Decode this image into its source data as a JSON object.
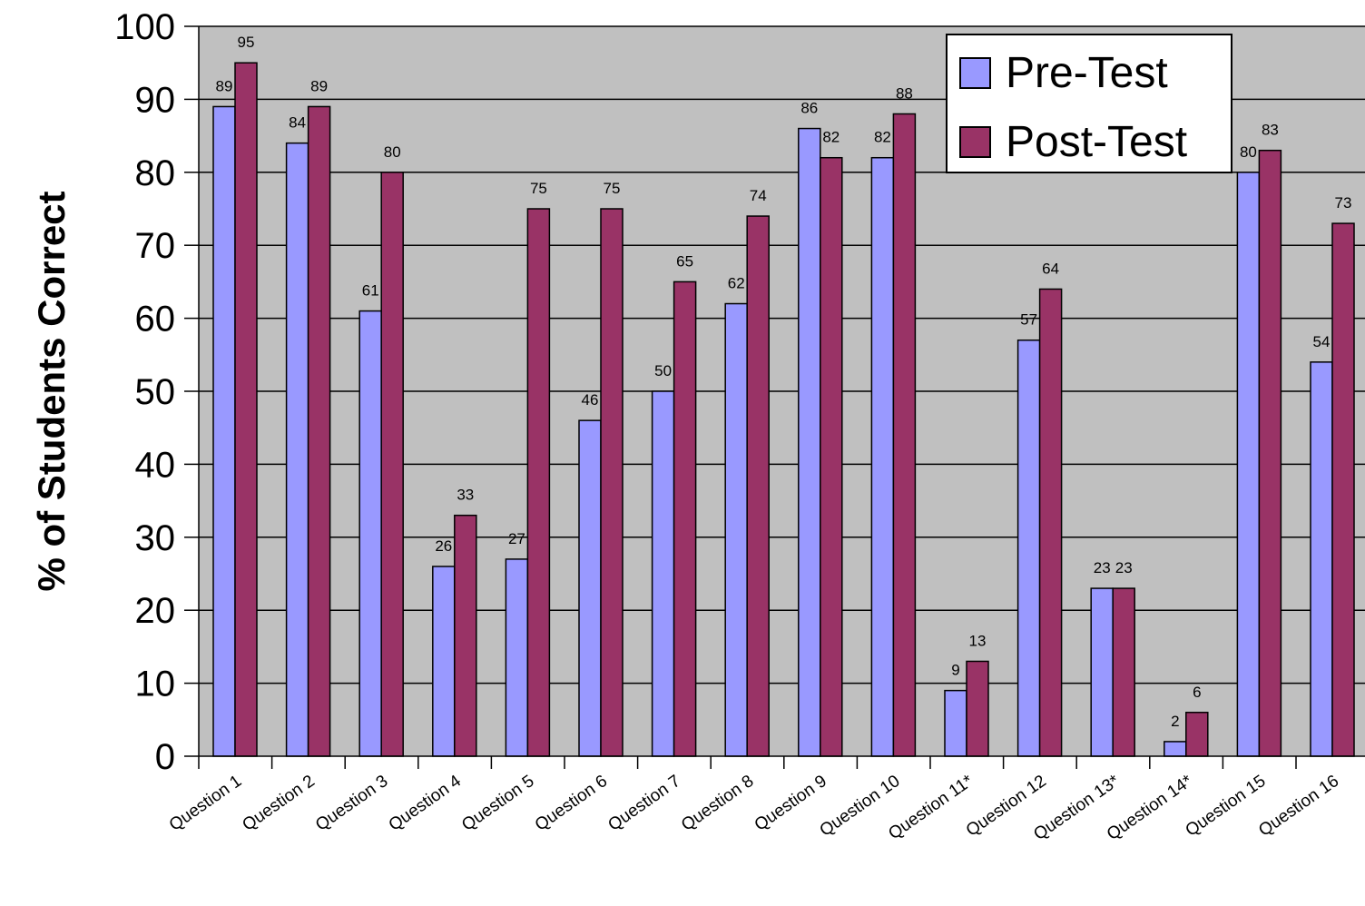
{
  "chart_data": {
    "type": "bar",
    "title": "",
    "xlabel": "",
    "ylabel": "% of Students Correct",
    "ylim": [
      0,
      100
    ],
    "yticks": [
      0,
      10,
      20,
      30,
      40,
      50,
      60,
      70,
      80,
      90,
      100
    ],
    "grid": "horizontal",
    "legend_position": "top-right",
    "plot_background": "#c0c0c0",
    "categories": [
      "Question 1",
      "Question 2",
      "Question 3",
      "Question 4",
      "Question 5",
      "Question 6",
      "Question 7",
      "Question 8",
      "Question 9",
      "Question 10",
      "Question 11*",
      "Question 12",
      "Question 13*",
      "Question 14*",
      "Question 15",
      "Question 16"
    ],
    "series": [
      {
        "name": "Pre-Test",
        "color": "#9999ff",
        "values": [
          89,
          84,
          61,
          26,
          27,
          46,
          50,
          62,
          86,
          82,
          9,
          57,
          23,
          2,
          80,
          54
        ]
      },
      {
        "name": "Post-Test",
        "color": "#993366",
        "values": [
          95,
          89,
          80,
          33,
          75,
          75,
          65,
          74,
          82,
          88,
          13,
          64,
          23,
          6,
          83,
          73
        ]
      }
    ]
  }
}
